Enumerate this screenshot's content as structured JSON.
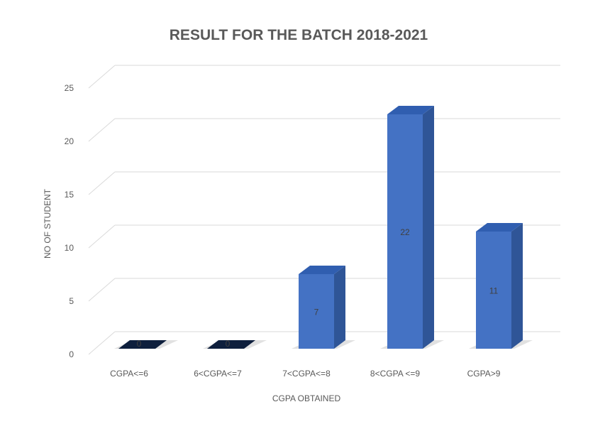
{
  "chart_data": {
    "type": "bar",
    "title": "RESULT FOR THE BATCH 2018-2021",
    "xlabel": "CGPA OBTAINED",
    "ylabel": "NO OF STUDENT",
    "categories": [
      "CGPA<=6",
      "6<CGPA<=7",
      "7<CGPA<=8",
      "8<CGPA <=9",
      "CGPA>9"
    ],
    "values": [
      0,
      0,
      7,
      22,
      11
    ],
    "data_labels": [
      "0",
      "0",
      "7",
      "22",
      "11"
    ],
    "ylim": [
      0,
      25
    ],
    "yticks": [
      "0",
      "5",
      "10",
      "15",
      "20",
      "25"
    ],
    "grid": true,
    "legend": "none",
    "bar_color": "#4472C4",
    "bar_side_color": "#2F5597",
    "bar_top_color": "#305EB0",
    "zero_bar_color": "#0E1F3D"
  }
}
